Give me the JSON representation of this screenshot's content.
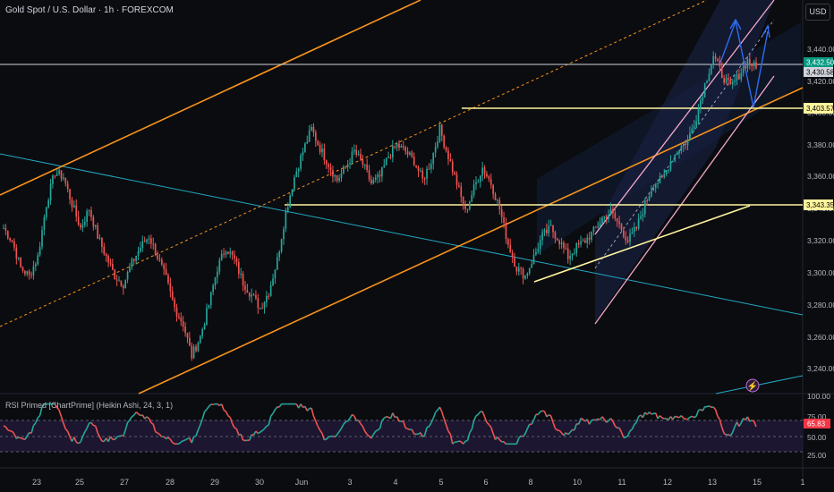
{
  "header": {
    "title": "Gold Spot / U.S. Dollar · 1h · FOREXCOM",
    "currency": "USD"
  },
  "price_axis": {
    "ticks": [
      "3,440.00",
      "3,420.00",
      "3,400.00",
      "3,380.00",
      "3,360.00",
      "3,340.00",
      "3,320.00",
      "3,300.00",
      "3,280.00",
      "3,260.00",
      "3,240.00"
    ],
    "tags": [
      {
        "label": "3,432.50",
        "bg": "#089981",
        "fg": "#ffffff"
      },
      {
        "label": "3,430.58",
        "bg": "#d1d4dc",
        "fg": "#000000"
      },
      {
        "label": "3,403.57",
        "bg": "#fff59d",
        "fg": "#000000"
      },
      {
        "label": "3,343.35",
        "bg": "#fff59d",
        "fg": "#000000"
      }
    ]
  },
  "rsi": {
    "title": "RSI Primed [ChartPrime] (Heikin Ashi, 24, 3, 1)",
    "ticks": [
      "100.00",
      "75.00",
      "50.00",
      "25.00"
    ],
    "tag": {
      "label": "65.83",
      "bg": "#f23645",
      "fg": "#ffffff"
    }
  },
  "time_axis": {
    "labels": [
      "23",
      "25",
      "27",
      "28",
      "29",
      "30",
      "Jun",
      "3",
      "4",
      "5",
      "6",
      "8",
      "10",
      "11",
      "12",
      "13",
      "15",
      "1"
    ]
  },
  "colors": {
    "up": "#26a69a",
    "down": "#ef5350",
    "orange": "#f7931a",
    "pink": "#f3a6c8",
    "yellow": "#fff59d",
    "cyan": "#22a7c2",
    "blue": "#2e6cf0"
  },
  "chart_data": {
    "type": "candlestick",
    "symbol": "Gold Spot / U.S. Dollar",
    "interval": "1h",
    "source": "FOREXCOM",
    "ylim": [
      3230,
      3465
    ],
    "horizontal_levels": [
      3432.5,
      3430.58,
      3403.57,
      3343.35
    ],
    "close_series": [
      3330,
      3322,
      3305,
      3300,
      3312,
      3345,
      3365,
      3362,
      3345,
      3330,
      3342,
      3325,
      3312,
      3300,
      3295,
      3308,
      3318,
      3325,
      3312,
      3298,
      3280,
      3270,
      3250,
      3262,
      3282,
      3305,
      3318,
      3310,
      3296,
      3288,
      3280,
      3290,
      3310,
      3340,
      3362,
      3378,
      3392,
      3380,
      3370,
      3360,
      3368,
      3378,
      3370,
      3358,
      3362,
      3375,
      3382,
      3378,
      3372,
      3360,
      3372,
      3392,
      3375,
      3358,
      3340,
      3355,
      3368,
      3358,
      3342,
      3320,
      3305,
      3300,
      3312,
      3325,
      3330,
      3322,
      3312,
      3318,
      3322,
      3328,
      3336,
      3340,
      3332,
      3322,
      3330,
      3345,
      3358,
      3360,
      3372,
      3380,
      3385,
      3400,
      3420,
      3438,
      3426,
      3418,
      3426,
      3435,
      3430
    ]
  }
}
